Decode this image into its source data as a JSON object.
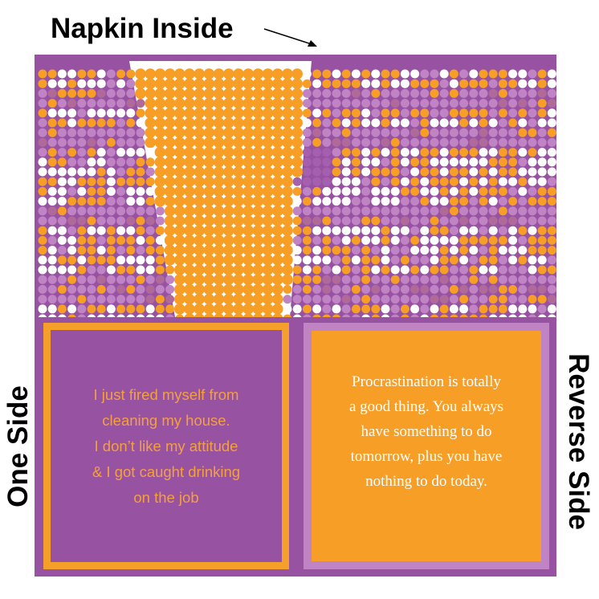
{
  "labels": {
    "inside": "Napkin Inside",
    "one_side": "One Side",
    "reverse_side": "Reverse Side"
  },
  "one_side": {
    "lines": [
      "I just fired myself from",
      "cleaning my house.",
      "I don’t like my attitude",
      "& I got caught drinking",
      "on the job"
    ]
  },
  "reverse_side": {
    "lines": [
      "Procrastination is totally",
      "a good thing. You always",
      "have something to do",
      "tomorrow, plus you have",
      "nothing to do today."
    ]
  },
  "colors": {
    "purple": "#9753a2",
    "orange": "#f69e25",
    "light_purple": "#c083c4",
    "white": "#ffffff"
  }
}
